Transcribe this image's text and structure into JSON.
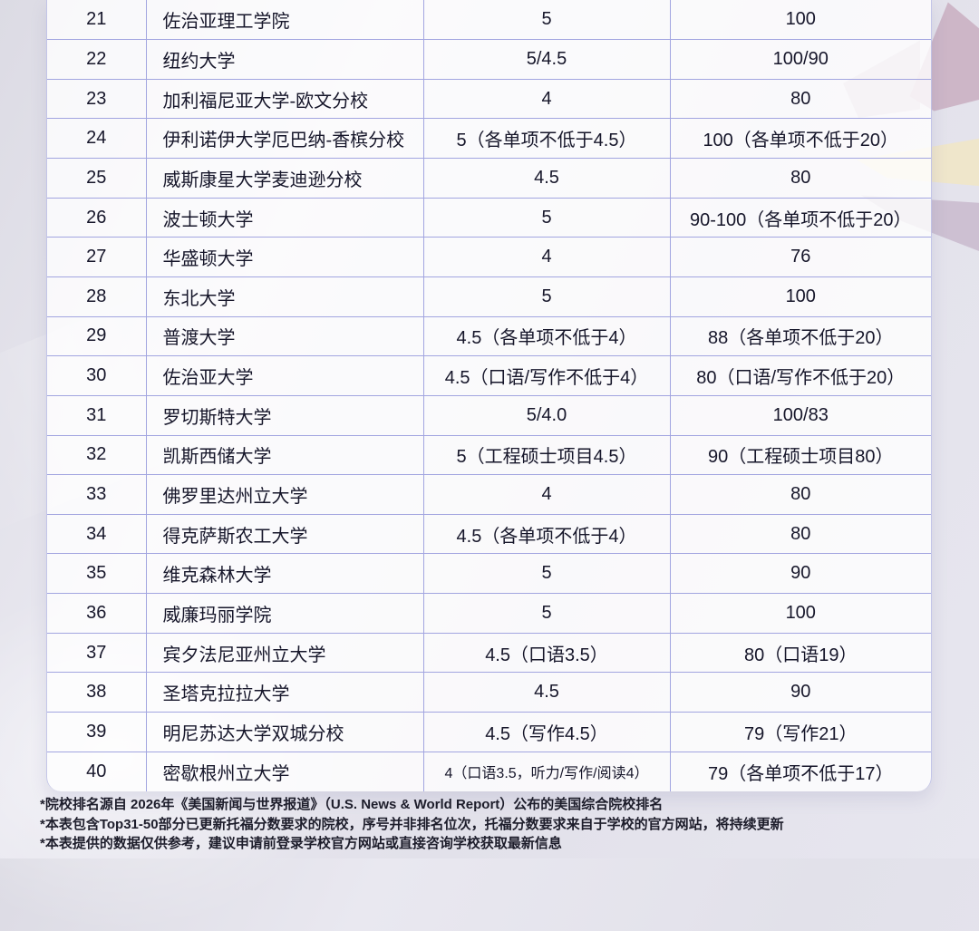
{
  "colors": {
    "grid_line": "#a2a5e0",
    "text": "#16162a",
    "cell_bg": "rgba(255,255,255,0.8)",
    "shape_mauve": "#c2a3b8",
    "shape_cream": "#efe5c8",
    "shape_mauve_lower": "#b9a4bd"
  },
  "table": {
    "rows": [
      [
        "21",
        "佐治亚理工学院",
        "5",
        "100"
      ],
      [
        "22",
        "纽约大学",
        "5/4.5",
        "100/90"
      ],
      [
        "23",
        "加利福尼亚大学-欧文分校",
        "4",
        "80"
      ],
      [
        "24",
        "伊利诺伊大学厄巴纳-香槟分校",
        "5（各单项不低于4.5）",
        "100（各单项不低于20）"
      ],
      [
        "25",
        "威斯康星大学麦迪逊分校",
        "4.5",
        "80"
      ],
      [
        "26",
        "波士顿大学",
        "5",
        "90-100（各单项不低于20）"
      ],
      [
        "27",
        "华盛顿大学",
        "4",
        "76"
      ],
      [
        "28",
        "东北大学",
        "5",
        "100"
      ],
      [
        "29",
        "普渡大学",
        "4.5（各单项不低于4）",
        "88（各单项不低于20）"
      ],
      [
        "30",
        "佐治亚大学",
        "4.5（口语/写作不低于4）",
        "80（口语/写作不低于20）"
      ],
      [
        "31",
        "罗切斯特大学",
        "5/4.0",
        "100/83"
      ],
      [
        "32",
        "凯斯西储大学",
        "5（工程硕士项目4.5）",
        "90（工程硕士项目80）"
      ],
      [
        "33",
        "佛罗里达州立大学",
        "4",
        "80"
      ],
      [
        "34",
        "得克萨斯农工大学",
        "4.5（各单项不低于4）",
        "80"
      ],
      [
        "35",
        "维克森林大学",
        "5",
        "90"
      ],
      [
        "36",
        "威廉玛丽学院",
        "5",
        "100"
      ],
      [
        "37",
        "宾夕法尼亚州立大学",
        "4.5（口语3.5）",
        "80（口语19）"
      ],
      [
        "38",
        "圣塔克拉拉大学",
        "4.5",
        "90"
      ],
      [
        "39",
        "明尼苏达大学双城分校",
        "4.5（写作4.5）",
        "79（写作21）"
      ],
      [
        "40",
        "密歇根州立大学",
        "4（口语3.5，听力/写作/阅读4）",
        "79（各单项不低于17）"
      ]
    ]
  },
  "footnotes": [
    "*院校排名源自 2026年《美国新闻与世界报道》（U.S. News & World Report）公布的美国综合院校排名",
    "*本表包含Top31-50部分已更新托福分数要求的院校，序号并非排名位次，托福分数要求来自于学校的官方网站，将持续更新",
    "*本表提供的数据仅供参考，建议申请前登录学校官方网站或直接咨询学校获取最新信息"
  ]
}
